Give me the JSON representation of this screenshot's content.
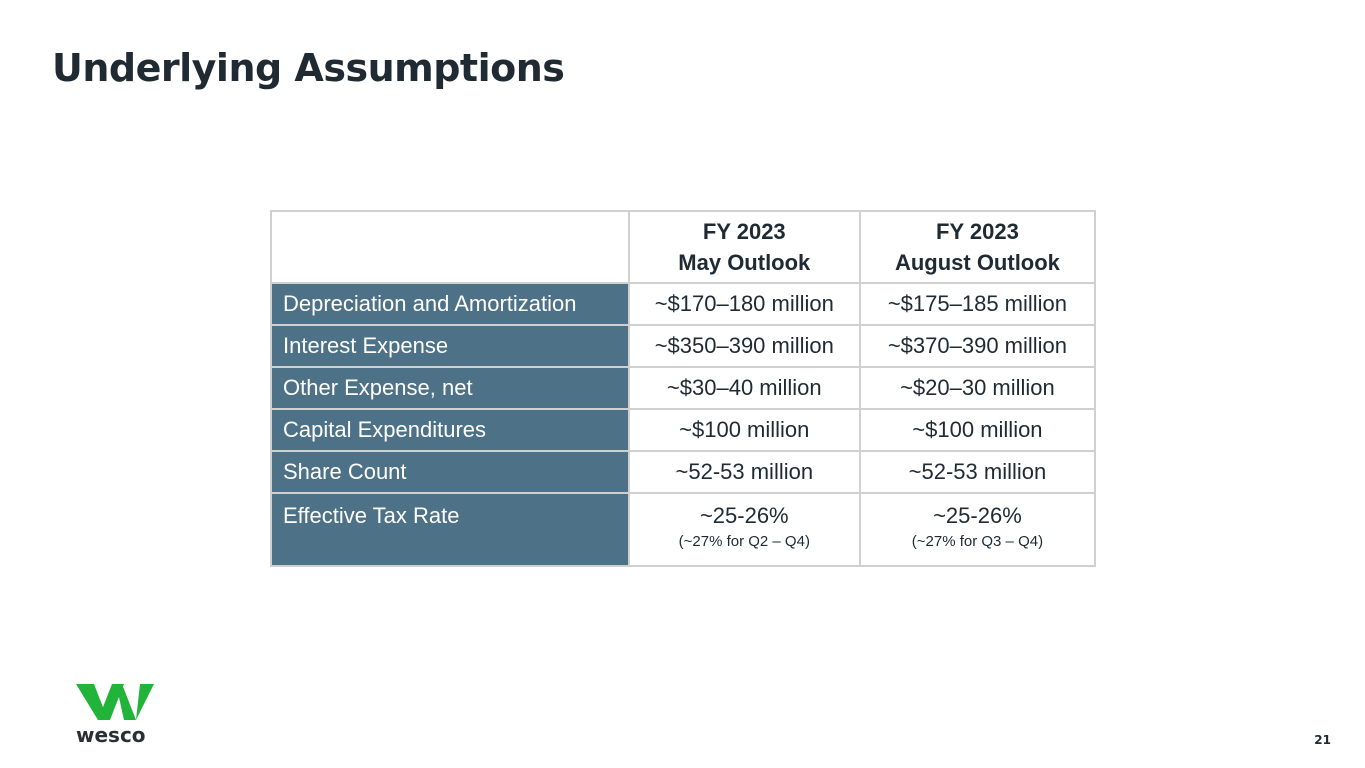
{
  "slide": {
    "title": "Underlying Assumptions",
    "page_number": "21"
  },
  "logo": {
    "text": "wesco",
    "brand_color": "#22b33a"
  },
  "colors": {
    "row_label_bg": "#4d7186",
    "border": "#d0d0d0"
  },
  "table": {
    "headers": [
      "",
      {
        "line1": "FY 2023",
        "line2": "May Outlook"
      },
      {
        "line1": "FY 2023",
        "line2": "August Outlook"
      }
    ],
    "rows": [
      {
        "label": "Depreciation and Amortization",
        "may": "~$170–180 million",
        "august": "~$175–185 million"
      },
      {
        "label": "Interest Expense",
        "may": "~$350–390 million",
        "august": "~$370–390 million"
      },
      {
        "label": "Other Expense, net",
        "may": "~$30–40 million",
        "august": "~$20–30 million"
      },
      {
        "label": "Capital Expenditures",
        "may": "~$100 million",
        "august": "~$100 million"
      },
      {
        "label": "Share Count",
        "may": "~52-53 million",
        "august": "~52-53 million"
      },
      {
        "label": "Effective Tax Rate",
        "may": "~25-26%",
        "may_note": "(~27% for Q2 – Q4)",
        "august": "~25-26%",
        "august_note": "(~27% for Q3 – Q4)"
      }
    ]
  }
}
